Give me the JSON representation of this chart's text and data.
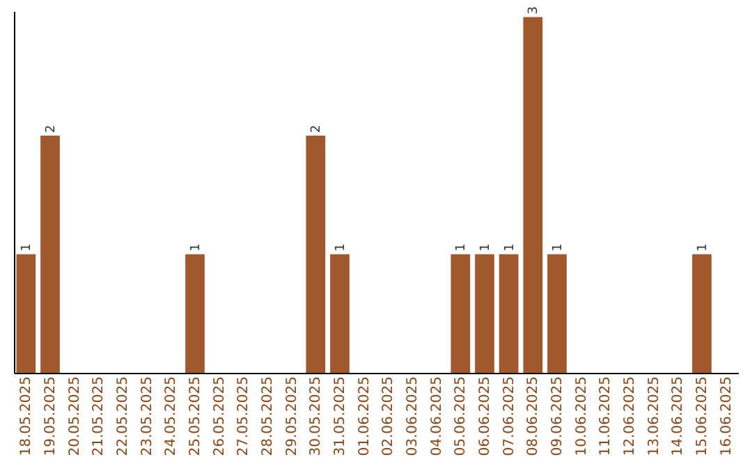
{
  "chart_data": {
    "type": "bar",
    "categories": [
      "18.05.2025",
      "19.05.2025",
      "20.05.2025",
      "21.05.2025",
      "22.05.2025",
      "23.05.2025",
      "24.05.2025",
      "25.05.2025",
      "26.05.2025",
      "27.05.2025",
      "28.05.2025",
      "29.05.2025",
      "30.05.2025",
      "31.05.2025",
      "01.06.2025",
      "02.06.2025",
      "03.06.2025",
      "04.06.2025",
      "05.06.2025",
      "06.06.2025",
      "07.06.2025",
      "08.06.2025",
      "09.06.2025",
      "10.06.2025",
      "11.06.2025",
      "12.06.2025",
      "13.06.2025",
      "14.06.2025",
      "15.06.2025",
      "16.06.2025"
    ],
    "values": [
      1,
      2,
      0,
      0,
      0,
      0,
      0,
      1,
      0,
      0,
      0,
      0,
      2,
      1,
      0,
      0,
      0,
      0,
      1,
      1,
      1,
      3,
      1,
      0,
      0,
      0,
      0,
      0,
      1,
      0
    ],
    "value_labels": [
      "1",
      "2",
      null,
      null,
      null,
      null,
      null,
      "1",
      null,
      null,
      null,
      null,
      "2",
      "1",
      null,
      null,
      null,
      null,
      "1",
      "1",
      "1",
      "3",
      "1",
      null,
      null,
      null,
      null,
      null,
      "1",
      null
    ],
    "color": "#a0582c",
    "ylim": [
      0,
      3.05
    ],
    "tick_labels": "x",
    "grid": false
  }
}
